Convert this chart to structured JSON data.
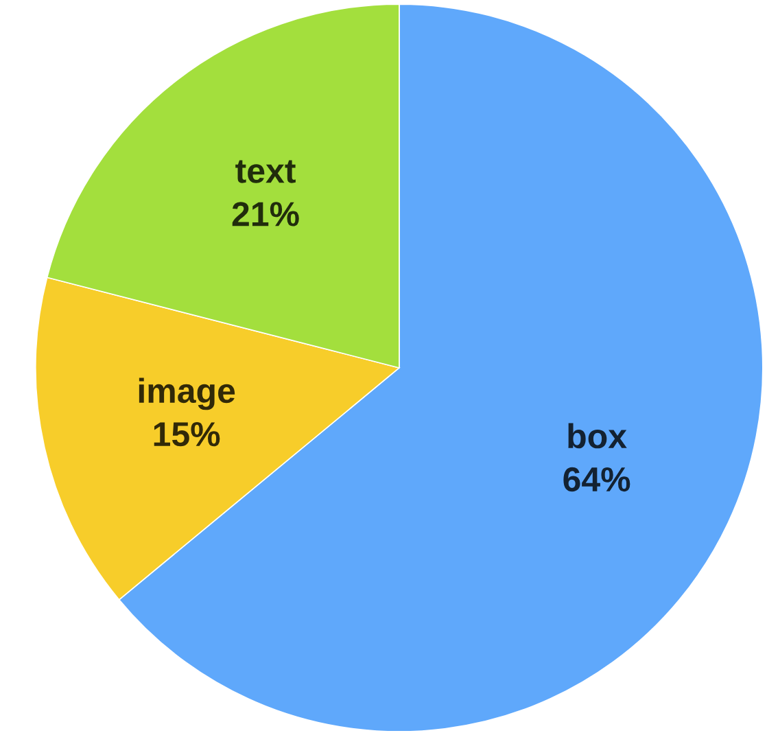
{
  "chart_data": {
    "type": "pie",
    "categories": [
      "box",
      "image",
      "text"
    ],
    "values": [
      64,
      15,
      21
    ],
    "value_labels": [
      "64%",
      "15%",
      "21%"
    ],
    "colors": [
      "#5fa8fb",
      "#f7cd2a",
      "#a3df3d"
    ]
  }
}
